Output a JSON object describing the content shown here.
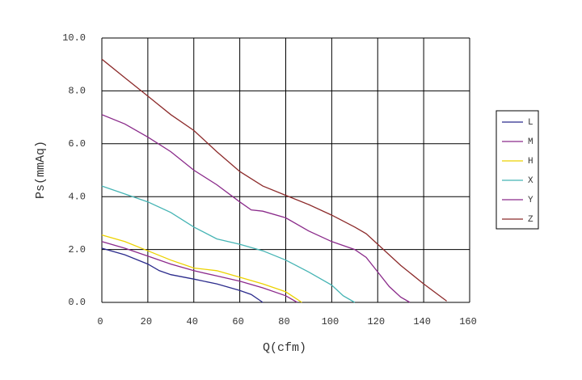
{
  "chart_data": {
    "type": "line",
    "xlabel": "Q(cfm)",
    "ylabel": "Ps(mmAq)",
    "xlim": [
      0,
      160
    ],
    "xticks": [
      0,
      20,
      40,
      60,
      80,
      100,
      120,
      140,
      160
    ],
    "ylim": [
      0,
      10
    ],
    "yticks": [
      {
        "value": 0,
        "label": "0.0"
      },
      {
        "value": 2,
        "label": "2.0"
      },
      {
        "value": 4,
        "label": "4.0"
      },
      {
        "value": 6,
        "label": "6.0"
      },
      {
        "value": 8,
        "label": "8.0"
      },
      {
        "value": 10,
        "label": "10.0"
      }
    ],
    "grid": true,
    "legend": "right",
    "series": [
      {
        "name": "L",
        "color": "#2b2b8c",
        "x": [
          0,
          10,
          20,
          25,
          30,
          40,
          50,
          60,
          65,
          70
        ],
        "values": [
          2.05,
          1.8,
          1.45,
          1.2,
          1.05,
          0.88,
          0.7,
          0.45,
          0.3,
          0
        ]
      },
      {
        "name": "M",
        "color": "#8c2a8c",
        "x": [
          0,
          10,
          20,
          30,
          40,
          50,
          60,
          70,
          80,
          85
        ],
        "values": [
          2.3,
          2.05,
          1.75,
          1.45,
          1.2,
          1.0,
          0.8,
          0.55,
          0.25,
          0
        ]
      },
      {
        "name": "H",
        "color": "#ecd200",
        "x": [
          0,
          10,
          20,
          30,
          40,
          50,
          60,
          70,
          80,
          87
        ],
        "values": [
          2.55,
          2.3,
          1.95,
          1.6,
          1.3,
          1.2,
          0.95,
          0.7,
          0.4,
          0
        ]
      },
      {
        "name": "X",
        "color": "#45b4b4",
        "x": [
          0,
          10,
          20,
          30,
          40,
          50,
          60,
          70,
          80,
          90,
          100,
          105,
          110
        ],
        "values": [
          4.4,
          4.1,
          3.8,
          3.4,
          2.85,
          2.4,
          2.2,
          1.95,
          1.6,
          1.15,
          0.65,
          0.25,
          0
        ]
      },
      {
        "name": "Y",
        "color": "#8a2a8a",
        "x": [
          0,
          10,
          20,
          30,
          40,
          50,
          60,
          65,
          70,
          80,
          90,
          100,
          110,
          115,
          120,
          125,
          130,
          134
        ],
        "values": [
          7.1,
          6.75,
          6.25,
          5.7,
          5.0,
          4.45,
          3.8,
          3.5,
          3.45,
          3.2,
          2.7,
          2.3,
          2.0,
          1.7,
          1.15,
          0.6,
          0.2,
          0
        ]
      },
      {
        "name": "Z",
        "color": "#8c2a2a",
        "x": [
          0,
          10,
          20,
          30,
          40,
          50,
          60,
          70,
          80,
          90,
          100,
          110,
          115,
          120,
          130,
          140,
          150
        ],
        "values": [
          9.2,
          8.5,
          7.8,
          7.1,
          6.5,
          5.7,
          4.95,
          4.4,
          4.05,
          3.7,
          3.3,
          2.85,
          2.6,
          2.2,
          1.4,
          0.7,
          0.05
        ]
      }
    ]
  }
}
